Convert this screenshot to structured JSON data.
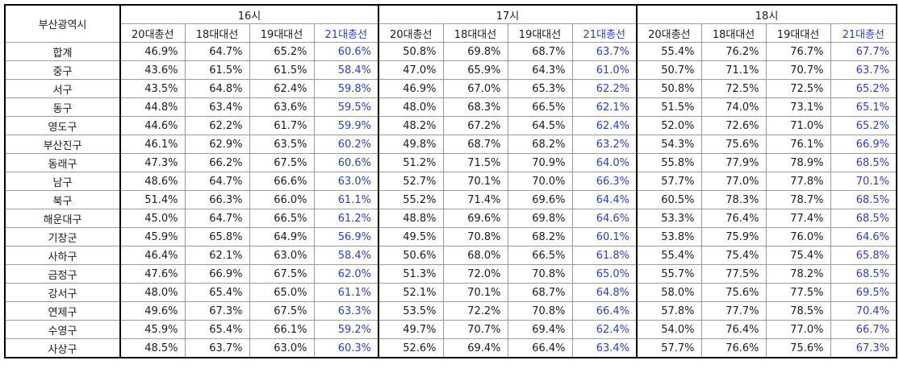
{
  "corner_label": "부산광역시",
  "groups": [
    "16시",
    "17시",
    "18시"
  ],
  "sub_headers": [
    "20대총선",
    "18대대선",
    "19대대선",
    "21대총선"
  ],
  "rows": [
    {
      "region": "합계",
      "values": [
        "46.9%",
        "64.7%",
        "65.2%",
        "60.6%",
        "50.8%",
        "69.8%",
        "68.7%",
        "63.7%",
        "55.4%",
        "76.2%",
        "76.7%",
        "67.7%"
      ]
    },
    {
      "region": "중구",
      "values": [
        "43.6%",
        "61.5%",
        "61.5%",
        "58.4%",
        "47.0%",
        "65.9%",
        "64.3%",
        "61.0%",
        "50.7%",
        "71.1%",
        "70.7%",
        "63.7%"
      ]
    },
    {
      "region": "서구",
      "values": [
        "43.5%",
        "64.8%",
        "62.4%",
        "59.8%",
        "46.9%",
        "67.0%",
        "65.3%",
        "62.2%",
        "50.8%",
        "72.5%",
        "72.5%",
        "65.2%"
      ]
    },
    {
      "region": "동구",
      "values": [
        "44.8%",
        "63.4%",
        "63.6%",
        "59.5%",
        "48.0%",
        "68.3%",
        "66.5%",
        "62.1%",
        "51.5%",
        "74.0%",
        "73.1%",
        "65.1%"
      ]
    },
    {
      "region": "영도구",
      "values": [
        "44.6%",
        "62.2%",
        "61.7%",
        "59.9%",
        "48.2%",
        "67.2%",
        "64.5%",
        "62.4%",
        "52.0%",
        "72.6%",
        "71.0%",
        "65.2%"
      ]
    },
    {
      "region": "부산진구",
      "values": [
        "46.1%",
        "62.9%",
        "63.5%",
        "60.2%",
        "49.8%",
        "68.7%",
        "68.2%",
        "63.2%",
        "54.3%",
        "75.6%",
        "76.1%",
        "66.9%"
      ]
    },
    {
      "region": "동래구",
      "values": [
        "47.3%",
        "66.2%",
        "67.5%",
        "60.6%",
        "51.2%",
        "71.5%",
        "70.9%",
        "64.0%",
        "55.8%",
        "77.9%",
        "78.9%",
        "68.5%"
      ]
    },
    {
      "region": "남구",
      "values": [
        "48.6%",
        "64.7%",
        "66.6%",
        "63.0%",
        "52.7%",
        "70.1%",
        "70.0%",
        "66.3%",
        "57.7%",
        "77.0%",
        "77.8%",
        "70.1%"
      ]
    },
    {
      "region": "북구",
      "values": [
        "51.4%",
        "66.3%",
        "66.0%",
        "61.1%",
        "55.2%",
        "71.4%",
        "69.6%",
        "64.4%",
        "60.5%",
        "78.3%",
        "78.7%",
        "68.5%"
      ]
    },
    {
      "region": "해운대구",
      "values": [
        "45.0%",
        "64.7%",
        "66.5%",
        "61.2%",
        "48.8%",
        "69.6%",
        "69.8%",
        "64.6%",
        "53.3%",
        "76.4%",
        "77.4%",
        "68.5%"
      ]
    },
    {
      "region": "기장군",
      "values": [
        "45.9%",
        "65.8%",
        "64.9%",
        "56.9%",
        "49.5%",
        "70.8%",
        "68.2%",
        "60.1%",
        "53.8%",
        "75.9%",
        "76.0%",
        "64.6%"
      ]
    },
    {
      "region": "사하구",
      "values": [
        "46.4%",
        "62.1%",
        "63.0%",
        "58.4%",
        "50.6%",
        "68.0%",
        "66.5%",
        "61.8%",
        "55.4%",
        "75.4%",
        "75.4%",
        "65.8%"
      ]
    },
    {
      "region": "금정구",
      "values": [
        "47.6%",
        "66.9%",
        "67.5%",
        "62.0%",
        "51.3%",
        "72.0%",
        "70.8%",
        "65.0%",
        "55.7%",
        "77.5%",
        "78.2%",
        "68.5%"
      ]
    },
    {
      "region": "강서구",
      "values": [
        "48.0%",
        "65.4%",
        "65.0%",
        "61.1%",
        "52.1%",
        "70.1%",
        "68.7%",
        "64.8%",
        "58.0%",
        "75.6%",
        "77.5%",
        "69.5%"
      ]
    },
    {
      "region": "연제구",
      "values": [
        "49.6%",
        "67.3%",
        "67.5%",
        "63.3%",
        "53.5%",
        "72.2%",
        "70.8%",
        "66.4%",
        "57.8%",
        "77.7%",
        "78.5%",
        "70.4%"
      ]
    },
    {
      "region": "수영구",
      "values": [
        "45.9%",
        "65.4%",
        "66.1%",
        "59.2%",
        "49.7%",
        "70.7%",
        "69.4%",
        "62.4%",
        "54.0%",
        "76.4%",
        "77.0%",
        "66.7%"
      ]
    },
    {
      "region": "사상구",
      "values": [
        "48.5%",
        "63.7%",
        "63.0%",
        "60.3%",
        "52.6%",
        "69.4%",
        "66.4%",
        "63.4%",
        "57.7%",
        "76.6%",
        "75.6%",
        "67.3%"
      ]
    }
  ],
  "colors": {
    "highlight": "#2c3fc4",
    "grid": "#9a9a9a",
    "outline": "#000000"
  }
}
